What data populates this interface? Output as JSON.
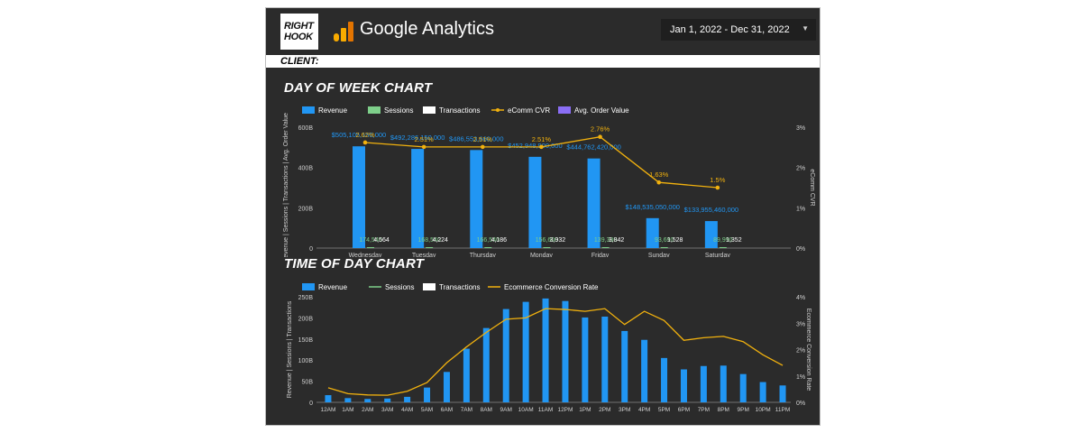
{
  "header": {
    "logo_line1": "RIGHT",
    "logo_line2": "HOOK",
    "product_title": "Google Analytics",
    "date_range": "Jan 1, 2022 - Dec 31, 2022",
    "client_label": "CLIENT:"
  },
  "colors": {
    "revenue": "#2196f3",
    "sessions": "#7ecf8a",
    "transactions": "#ffffff",
    "cvr": "#f1b10e",
    "aov": "#8a6ef5",
    "background": "#2b2b2b"
  },
  "sections": {
    "dow_title": "DAY OF WEEK CHART",
    "tod_title": "TIME OF DAY CHART"
  },
  "chart_data": [
    {
      "type": "bar",
      "title": "DAY OF WEEK CHART",
      "categories": [
        "Wednesday",
        "Tuesday",
        "Thursday",
        "Monday",
        "Friday",
        "Sunday",
        "Saturday"
      ],
      "legend": [
        "Revenue",
        "Sessions",
        "Transactions",
        "eComm CVR",
        "Avg. Order Value"
      ],
      "legend_position": "top",
      "ylabel": "Revenue | Sessions | Transactions | Avg. Order Value",
      "y2label": "eComm CVR",
      "yticks": [
        "0",
        "200B",
        "400B",
        "600B"
      ],
      "y2ticks": [
        "0%",
        "1%",
        "2%",
        "3%"
      ],
      "ylim": [
        0,
        600000000000
      ],
      "y2lim": [
        0,
        3
      ],
      "series": [
        {
          "name": "Revenue",
          "values": [
            505105150000,
            492286150000,
            486553660000,
            452948900000,
            444762420000,
            148535050000,
            133955460000
          ],
          "labels": [
            "$505,105,150,000",
            "$492,286,150,000",
            "$486,553,660,000",
            "$452,948,900,000",
            "$444,762,420,000",
            "$148,535,050,000",
            "$133,955,460,000"
          ]
        },
        {
          "name": "Sessions",
          "labels": [
            "174,540",
            "168,540",
            "166,540",
            "156,600",
            "139,330",
            "93,690",
            "89,990"
          ]
        },
        {
          "name": "Transactions",
          "labels": [
            "4,564",
            "4,224",
            "4,186",
            "3,932",
            "3,842",
            "1,528",
            "1,352"
          ]
        },
        {
          "name": "eComm CVR",
          "values": [
            2.62,
            2.51,
            2.51,
            2.51,
            2.76,
            1.63,
            1.5
          ],
          "labels": [
            "2.62%",
            "2.51%",
            "2.51%",
            "2.51%",
            "2.76%",
            "1.63%",
            "1.5%"
          ]
        }
      ]
    },
    {
      "type": "bar",
      "title": "TIME OF DAY CHART",
      "categories": [
        "12AM",
        "1AM",
        "2AM",
        "3AM",
        "4AM",
        "5AM",
        "6AM",
        "7AM",
        "8AM",
        "9AM",
        "10AM",
        "11AM",
        "12PM",
        "1PM",
        "2PM",
        "3PM",
        "4PM",
        "5PM",
        "6PM",
        "7PM",
        "8PM",
        "9PM",
        "10PM",
        "11PM"
      ],
      "legend": [
        "Revenue",
        "Sessions",
        "Transactions",
        "Ecommerce Conversion Rate"
      ],
      "legend_position": "top",
      "ylabel": "Revenue | Sessions | Transactions",
      "y2label": "Ecommerce Conversion Rate",
      "yticks": [
        "0",
        "50B",
        "100B",
        "150B",
        "200B",
        "250B"
      ],
      "y2ticks": [
        "0%",
        "1%",
        "2%",
        "3%",
        "4%"
      ],
      "ylim": [
        0,
        250000000000
      ],
      "y2lim": [
        0,
        4
      ],
      "series": [
        {
          "name": "Revenue",
          "values": [
            17000000000,
            10000000000,
            8000000000,
            9000000000,
            13000000000,
            35000000000,
            72000000000,
            127000000000,
            176000000000,
            221000000000,
            238000000000,
            246000000000,
            240000000000,
            201000000000,
            203000000000,
            169000000000,
            148000000000,
            105000000000,
            78000000000,
            86000000000,
            87000000000,
            67000000000,
            48000000000,
            40000000000
          ]
        },
        {
          "name": "Ecommerce Conversion Rate",
          "values": [
            0.55,
            0.33,
            0.28,
            0.27,
            0.42,
            0.75,
            1.5,
            2.1,
            2.65,
            3.15,
            3.2,
            3.55,
            3.52,
            3.45,
            3.55,
            2.95,
            3.45,
            3.1,
            2.35,
            2.45,
            2.5,
            2.3,
            1.8,
            1.4
          ]
        }
      ]
    }
  ]
}
